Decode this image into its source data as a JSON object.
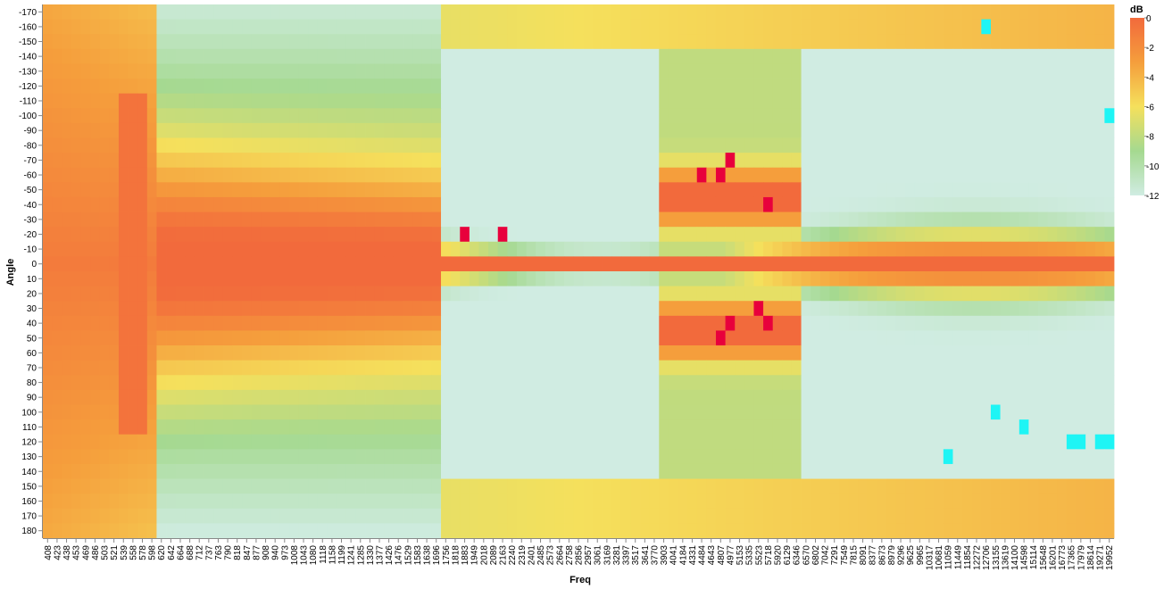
{
  "chart_data": {
    "type": "heatmap",
    "xlabel": "Freq",
    "ylabel": "Angle",
    "color_legend_title": "dB",
    "color_domain": [
      -12,
      0
    ],
    "color_legend_ticks": [
      0,
      -2,
      -4,
      -6,
      -8,
      -10,
      -12
    ],
    "x_tick_labels": [
      408,
      423,
      438,
      453,
      469,
      486,
      503,
      521,
      539,
      558,
      578,
      598,
      620,
      642,
      664,
      688,
      712,
      737,
      763,
      790,
      818,
      847,
      877,
      908,
      940,
      973,
      1008,
      1043,
      1080,
      1118,
      1158,
      1199,
      1241,
      1285,
      1330,
      1377,
      1426,
      1476,
      1529,
      1583,
      1638,
      1696,
      1756,
      1818,
      1883,
      1949,
      2018,
      2089,
      2163,
      2240,
      2319,
      2401,
      2485,
      2573,
      2664,
      2758,
      2856,
      2957,
      3061,
      3169,
      3281,
      3397,
      3517,
      3641,
      3770,
      3903,
      4041,
      4184,
      4331,
      4484,
      4643,
      4807,
      4977,
      5153,
      5335,
      5523,
      5718,
      5920,
      6129,
      6346,
      6570,
      6802,
      7042,
      7291,
      7549,
      7815,
      8091,
      8377,
      8673,
      8979,
      9296,
      9625,
      9965,
      10317,
      10681,
      11059,
      11449,
      11854,
      12272,
      12706,
      13155,
      13619,
      14100,
      14598,
      15114,
      15648,
      16201,
      16773,
      17365,
      17979,
      18614,
      19271,
      19952
    ],
    "y_tick_labels": [
      -170,
      -160,
      -150,
      -140,
      -130,
      -120,
      -110,
      -100,
      -90,
      -80,
      -70,
      -60,
      -50,
      -40,
      -30,
      -20,
      -10,
      0,
      10,
      20,
      30,
      40,
      50,
      60,
      70,
      80,
      90,
      100,
      110,
      120,
      130,
      140,
      150,
      160,
      170,
      180
    ],
    "colors": {
      "scale": [
        "#d0ece2",
        "#a5d990",
        "#f5e05c",
        "#f59e3c",
        "#f26a3c"
      ],
      "hot": "#e8003c",
      "outlier": "#1ef5f5"
    },
    "hot_spots": [
      {
        "freq": 4484,
        "angle": -60,
        "db": 1.5
      },
      {
        "freq": 4807,
        "angle": -60,
        "db": 1.5
      },
      {
        "freq": 4977,
        "angle": -70,
        "db": 1.2
      },
      {
        "freq": 5718,
        "angle": -40,
        "db": 1.5
      },
      {
        "freq": 1883,
        "angle": -20,
        "db": 1.2
      },
      {
        "freq": 2163,
        "angle": -20,
        "db": 1.0
      },
      {
        "freq": 4807,
        "angle": 50,
        "db": 1.5
      },
      {
        "freq": 4977,
        "angle": 40,
        "db": 1.5
      },
      {
        "freq": 5718,
        "angle": 40,
        "db": 1.2
      },
      {
        "freq": 5523,
        "angle": 30,
        "db": 1.0
      }
    ],
    "outlier_cells": [
      {
        "freq": 13155,
        "angle": 100,
        "db": -20
      },
      {
        "freq": 14598,
        "angle": 110,
        "db": -20
      },
      {
        "freq": 17365,
        "angle": 120,
        "db": -16
      },
      {
        "freq": 17979,
        "angle": 120,
        "db": -14
      },
      {
        "freq": 19271,
        "angle": 120,
        "db": -15
      },
      {
        "freq": 19952,
        "angle": 120,
        "db": -18
      },
      {
        "freq": 11059,
        "angle": 130,
        "db": -15
      },
      {
        "freq": 12706,
        "angle": -160,
        "db": -15
      },
      {
        "freq": 19952,
        "angle": -100,
        "db": -13
      }
    ]
  }
}
